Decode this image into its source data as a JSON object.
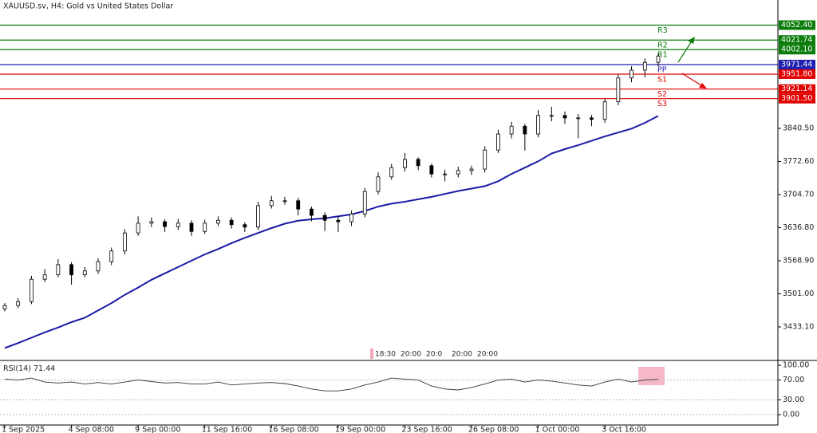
{
  "chart_data": {
    "type": "candlestick",
    "title": "XAUUSD.sv, H4: Gold vs United States Dollar",
    "categories": [
      "1 Sep 2025",
      null,
      null,
      null,
      null,
      "4 Sep 08:00",
      null,
      null,
      null,
      null,
      "9 Sep 00:00",
      null,
      null,
      null,
      null,
      "11 Sep 16:00",
      null,
      null,
      null,
      null,
      "16 Sep 08:00",
      null,
      null,
      null,
      null,
      "19 Sep 00:00",
      null,
      null,
      null,
      null,
      "23 Sep 16:00",
      null,
      null,
      null,
      null,
      "26 Sep 08:00",
      null,
      null,
      null,
      null,
      "1 Oct 00:00",
      null,
      null,
      null,
      null,
      "3 Oct 16:00",
      null,
      null,
      null,
      null
    ],
    "open": [
      3470,
      3477,
      3485,
      3531,
      3540,
      3561,
      3540,
      3548,
      3567,
      3589,
      3626,
      3646,
      3649,
      3639,
      3646,
      3629,
      3646,
      3652,
      3643,
      3638,
      3682,
      3692,
      3692,
      3675,
      3662,
      3652,
      3649,
      3665,
      3711,
      3741,
      3760,
      3777,
      3764,
      3747,
      3747,
      3754,
      3757,
      3796,
      3829,
      3845,
      3829,
      3867,
      3867,
      3862,
      3862,
      3859,
      3895,
      3944,
      3960,
      3976
    ],
    "high": [
      3482,
      3492,
      3538,
      3552,
      3572,
      3566,
      3556,
      3574,
      3596,
      3634,
      3660,
      3658,
      3654,
      3655,
      3652,
      3653,
      3660,
      3658,
      3648,
      3690,
      3702,
      3700,
      3698,
      3680,
      3668,
      3660,
      3672,
      3718,
      3750,
      3768,
      3790,
      3781,
      3768,
      3756,
      3762,
      3764,
      3804,
      3838,
      3854,
      3850,
      3878,
      3885,
      3875,
      3870,
      3868,
      3902,
      3951,
      3968,
      3984,
      3995
    ],
    "low": [
      3465,
      3472,
      3480,
      3525,
      3535,
      3520,
      3535,
      3542,
      3560,
      3582,
      3620,
      3638,
      3628,
      3632,
      3620,
      3624,
      3640,
      3635,
      3628,
      3632,
      3676,
      3684,
      3662,
      3650,
      3630,
      3628,
      3640,
      3658,
      3705,
      3735,
      3752,
      3755,
      3740,
      3732,
      3740,
      3745,
      3750,
      3790,
      3820,
      3795,
      3822,
      3855,
      3850,
      3820,
      3845,
      3852,
      3888,
      3935,
      3945,
      3968
    ],
    "close": [
      3477,
      3485,
      3531,
      3540,
      3561,
      3540,
      3548,
      3567,
      3589,
      3626,
      3646,
      3649,
      3639,
      3646,
      3629,
      3646,
      3652,
      3643,
      3638,
      3682,
      3692,
      3692,
      3675,
      3662,
      3652,
      3649,
      3665,
      3711,
      3741,
      3760,
      3777,
      3764,
      3747,
      3747,
      3754,
      3757,
      3796,
      3829,
      3845,
      3829,
      3867,
      3867,
      3862,
      3862,
      3859,
      3895,
      3944,
      3960,
      3976,
      3989
    ],
    "moving_average": {
      "color": "#1a1aa6",
      "values": [
        3390,
        3400,
        3411,
        3422,
        3432,
        3443,
        3452,
        3467,
        3482,
        3499,
        3514,
        3530,
        3543,
        3556,
        3569,
        3582,
        3593,
        3605,
        3616,
        3626,
        3636,
        3645,
        3651,
        3654,
        3656,
        3660,
        3664,
        3671,
        3680,
        3686,
        3690,
        3695,
        3700,
        3706,
        3712,
        3717,
        3722,
        3732,
        3747,
        3760,
        3773,
        3789,
        3798,
        3806,
        3815,
        3824,
        3832,
        3840,
        3852,
        3866
      ]
    },
    "ylim": [
      3364.4,
      4103.9
    ],
    "yticks": [
      {
        "value": 3840.5,
        "label": "3840.50"
      },
      {
        "value": 3772.6,
        "label": "3772.60"
      },
      {
        "value": 3704.7,
        "label": "3704.70"
      },
      {
        "value": 3636.8,
        "label": "3636.80"
      },
      {
        "value": 3568.9,
        "label": "3568.90"
      },
      {
        "value": 3501,
        "label": "3501.00"
      },
      {
        "value": 3433.1,
        "label": "3433.10"
      }
    ],
    "pivots": [
      {
        "name": "R3",
        "value": 4052.4,
        "label": "4052.40",
        "color": "#0a7d0a"
      },
      {
        "name": "R2",
        "value": 4021.74,
        "label": "4021.74",
        "color": "#0a7d0a"
      },
      {
        "name": "R1",
        "value": 4002.1,
        "label": "4002.10",
        "color": "#0a7d0a"
      },
      {
        "name": "PP",
        "value": 3971.44,
        "label": "3971.44",
        "color": "#1f1fb0"
      },
      {
        "name": "S1",
        "value": 3951.8,
        "label": "3951.80",
        "color": "#e00000"
      },
      {
        "name": "S2",
        "value": 3921.14,
        "label": "3921.14",
        "color": "#e00000"
      },
      {
        "name": "S3",
        "value": 3901.5,
        "label": "3901.50",
        "color": "#e00000"
      }
    ],
    "time_marks": [
      "18:30",
      "20:00",
      "20:0",
      "20:00",
      "20:00"
    ],
    "rsi": {
      "name": "RSI(14)",
      "color": "#333333",
      "values": [
        72,
        70,
        74,
        66,
        64,
        66,
        62,
        65,
        62,
        66,
        70,
        67,
        64,
        65,
        62,
        62,
        66,
        60,
        62,
        64,
        65,
        63,
        58,
        52,
        48,
        48,
        52,
        60,
        66,
        74,
        72,
        70,
        58,
        52,
        50,
        55,
        62,
        70,
        72,
        66,
        70,
        68,
        64,
        60,
        58,
        66,
        72,
        66,
        70,
        71.44
      ],
      "ylim": [
        -21,
        106.5
      ],
      "yticks": [
        {
          "value": 100,
          "label": "100.00"
        },
        {
          "value": 70,
          "label": "70.00"
        },
        {
          "value": 30,
          "label": "30.00"
        },
        {
          "value": 0,
          "label": "0.00"
        }
      ]
    }
  }
}
